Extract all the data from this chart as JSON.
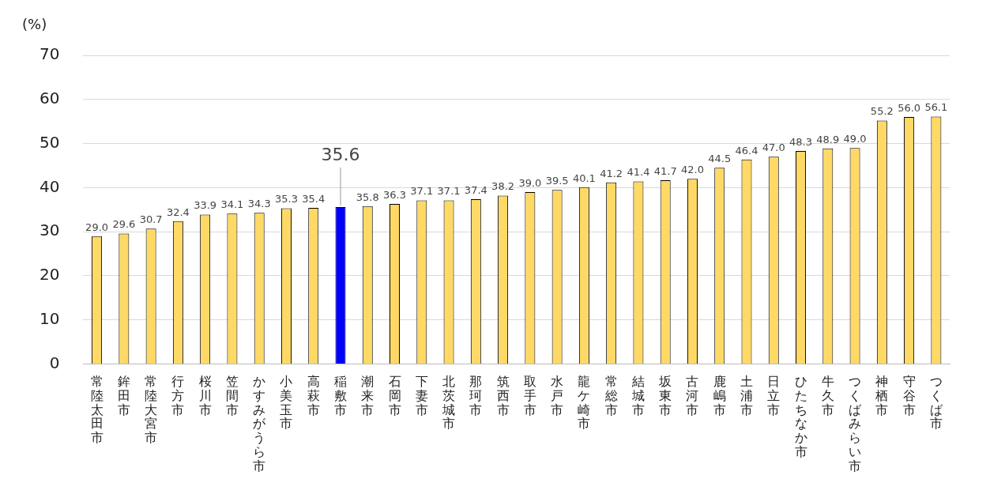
{
  "chart_data": {
    "type": "bar",
    "ylabel": "(%)",
    "categories": [
      "常陸太田市",
      "鉾田市",
      "常陸大宮市",
      "行方市",
      "桜川市",
      "笠間市",
      "かすみがうら市",
      "小美玉市",
      "高萩市",
      "稲敷市",
      "潮来市",
      "石岡市",
      "下妻市",
      "北茨城市",
      "那珂市",
      "筑西市",
      "取手市",
      "水戸市",
      "龍ケ崎市",
      "常総市",
      "結城市",
      "坂東市",
      "古河市",
      "鹿嶋市",
      "土浦市",
      "日立市",
      "ひたちなか市",
      "牛久市",
      "つくばみらい市",
      "神栖市",
      "守谷市",
      "つくば市"
    ],
    "values": [
      29.0,
      29.6,
      30.7,
      32.4,
      33.9,
      34.1,
      34.3,
      35.3,
      35.4,
      35.6,
      35.8,
      36.3,
      37.1,
      37.1,
      37.4,
      38.2,
      39.0,
      39.5,
      40.1,
      41.2,
      41.4,
      41.7,
      42.0,
      44.5,
      46.4,
      47.0,
      48.3,
      48.9,
      49.0,
      55.2,
      56.0,
      56.1
    ],
    "value_labels": [
      "29.0",
      "29.6",
      "30.7",
      "32.4",
      "33.9",
      "34.1",
      "34.3",
      "35.3",
      "35.4",
      "35.6",
      "35.8",
      "36.3",
      "37.1",
      "37.1",
      "37.4",
      "38.2",
      "39.0",
      "39.5",
      "40.1",
      "41.2",
      "41.4",
      "41.7",
      "42.0",
      "44.5",
      "46.4",
      "47.0",
      "48.3",
      "48.9",
      "49.0",
      "55.2",
      "56.0",
      "56.1"
    ],
    "color": "#ffd966",
    "colors": [
      "#ffd966",
      "#ffd966",
      "#ffd966",
      "#ffd966",
      "#ffd966",
      "#ffd966",
      "#ffd966",
      "#ffd966",
      "#ffd966",
      "#0000ff",
      "#ffd966",
      "#ffd966",
      "#ffd966",
      "#ffd966",
      "#ffd966",
      "#ffd966",
      "#ffd966",
      "#ffd966",
      "#ffd966",
      "#ffd966",
      "#ffd966",
      "#ffd966",
      "#ffd966",
      "#ffd966",
      "#ffd966",
      "#ffd966",
      "#ffd966",
      "#ffd966",
      "#ffd966",
      "#ffd966",
      "#ffd966",
      "#ffd966"
    ],
    "ylim": [
      0,
      70
    ],
    "yticks": [
      0,
      10,
      20,
      30,
      40,
      50,
      60,
      70
    ],
    "grid": "y",
    "legend": false
  }
}
